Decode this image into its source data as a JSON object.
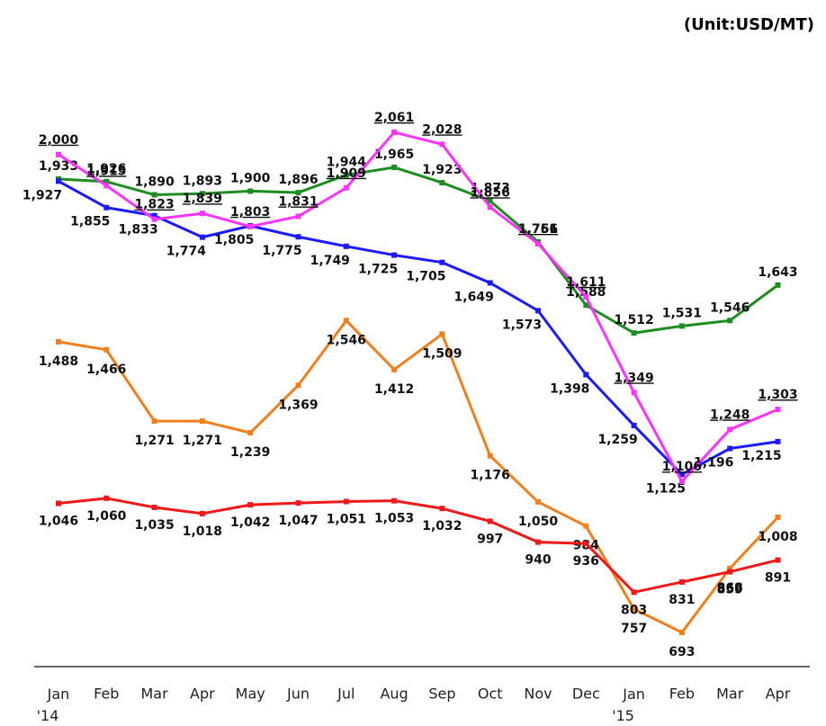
{
  "chart_data": {
    "type": "line",
    "subtitle": "(Unit:USD/MT)",
    "categories": [
      "Jan '14",
      "Feb",
      "Mar",
      "Apr",
      "May",
      "Jun",
      "Jul",
      "Aug",
      "Sep",
      "Oct",
      "Nov",
      "Dec",
      "Jan '15",
      "Feb",
      "Mar",
      "Apr"
    ],
    "series": [
      {
        "color": "#1e8c1e",
        "values": [
          1933,
          1926,
          1890,
          1893,
          1900,
          1896,
          1944,
          1965,
          1923,
          1873,
          1761,
          1588,
          1512,
          1531,
          1546,
          1643
        ],
        "value_labels": [
          "1,933",
          "1,926",
          "1,890",
          "1,893",
          "1,900",
          "1,896",
          "1,944",
          "1,965",
          "1,923",
          "1,873",
          "1,761",
          "1,588",
          "1,512",
          "1,531",
          "1,546",
          "1,643"
        ]
      },
      {
        "color": "#1a1aff",
        "values": [
          1927,
          1855,
          1833,
          1774,
          1805,
          1775,
          1749,
          1725,
          1705,
          1649,
          1573,
          1398,
          1259,
          1125,
          1196,
          1215
        ],
        "value_labels": [
          "1,927",
          "1,855",
          "1,833",
          "1,774",
          "1,805",
          "1,775",
          "1,749",
          "1,725",
          "1,705",
          "1,649",
          "1,573",
          "1,398",
          "1,259",
          "1,125",
          "1,196",
          "1,215"
        ]
      },
      {
        "color": "#ff33ff",
        "values": [
          2000,
          1915,
          1823,
          1839,
          1803,
          1831,
          1909,
          2061,
          2028,
          1856,
          1756,
          1611,
          1349,
          1106,
          1248,
          1303
        ],
        "value_labels": [
          "2,000",
          "1,915",
          "1,823",
          "1,839",
          "1,803",
          "1,831",
          "1,909",
          "2,061",
          "2,028",
          "1,856",
          "1,756",
          "1,611",
          "1,349",
          "1,106",
          "1,248",
          "1,303"
        ]
      },
      {
        "color": "#f07f1e",
        "values": [
          1488,
          1466,
          1271,
          1271,
          1239,
          1369,
          1546,
          1412,
          1509,
          1176,
          1050,
          984,
          757,
          693,
          868,
          1008
        ],
        "value_labels": [
          "1,488",
          "1,466",
          "1,271",
          "1,271",
          "1,239",
          "1,369",
          "1,546",
          "1,412",
          "1,509",
          "1,176",
          "1,050",
          "984",
          "757",
          "693",
          "868",
          "1,008"
        ]
      },
      {
        "color": "#f01818",
        "values": [
          1046,
          1060,
          1035,
          1018,
          1042,
          1047,
          1051,
          1053,
          1032,
          997,
          940,
          936,
          803,
          831,
          859,
          891
        ],
        "value_labels": [
          "1,046",
          "1,060",
          "1,035",
          "1,018",
          "1,042",
          "1,047",
          "1,051",
          "1,053",
          "1,032",
          "997",
          "940",
          "936",
          "803",
          "831",
          "859",
          "891"
        ]
      }
    ]
  }
}
